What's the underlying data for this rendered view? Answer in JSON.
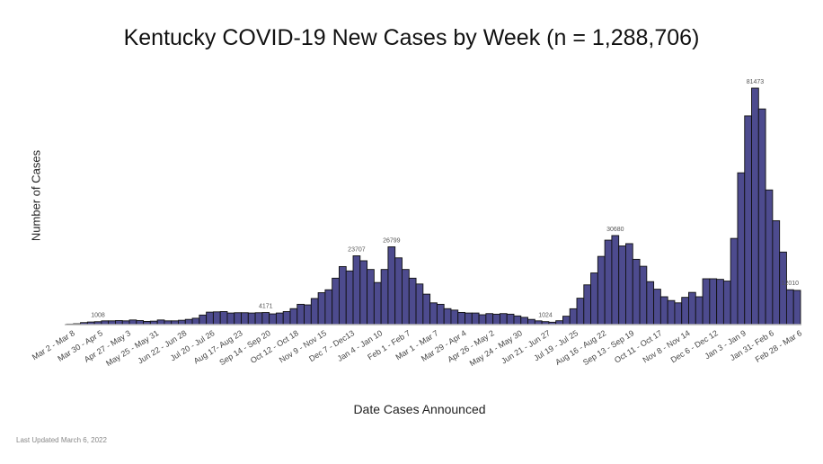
{
  "chart_data": {
    "type": "bar",
    "title": "Kentucky COVID-19 New Cases by Week (n = 1,288,706)",
    "xlabel": "Date Cases Announced",
    "ylabel": "Number of Cases",
    "ylim": [
      0,
      82000
    ],
    "grid": false,
    "bar_color": "#4d4b8e",
    "tick_labels": [
      "Mar 2 - Mar 8",
      "Mar 30 - Apr 5",
      "Apr 27 - May 3",
      "May 25 - May 31",
      "Jun 22 - Jun 28",
      "Jul 20 - Jul 26",
      "Aug 17- Aug 23",
      "Sep 14 - Sep 20",
      "Oct 12 - Oct 18",
      "Nov 9 - Nov 15",
      "Dec 7 - Dec13",
      "Jan 4 - Jan 10",
      "Feb 1 - Feb 7",
      "Mar 1 - Mar 7",
      "Mar 29 - Apr 4",
      "Apr 26 - May 2",
      "May 24 - May 30",
      "Jun 21 - Jun 27",
      "Jul 19 - Jul 25",
      "Aug 16 - Aug 22",
      "Sep 13 - Sep 19",
      "Oct 11 - Oct 17",
      "Nov 8 - Nov 14",
      "Dec 6 - Dec 12",
      "Jan 3 - Jan 9",
      "Jan 31- Feb 6",
      "Feb 28 - Mar 6"
    ],
    "tick_every": 4,
    "values": [
      50,
      300,
      700,
      900,
      1008,
      1300,
      1300,
      1400,
      1300,
      1600,
      1400,
      1100,
      1200,
      1600,
      1300,
      1300,
      1500,
      1800,
      2200,
      3300,
      4300,
      4400,
      4500,
      4000,
      4100,
      4100,
      4000,
      4100,
      4171,
      3700,
      4000,
      4500,
      5500,
      7000,
      6800,
      9000,
      11000,
      12000,
      16000,
      20000,
      18500,
      23707,
      22000,
      19000,
      14500,
      19000,
      26799,
      23000,
      19000,
      16000,
      14000,
      10500,
      7500,
      7000,
      5500,
      5000,
      4200,
      4000,
      4000,
      3400,
      3800,
      3600,
      3800,
      3600,
      3000,
      2500,
      1800,
      1300,
      1024,
      830,
      1340,
      2900,
      5460,
      9100,
      13700,
      17800,
      23500,
      29100,
      30680,
      27100,
      27900,
      22500,
      20100,
      14800,
      12200,
      9600,
      8300,
      7500,
      9400,
      11100,
      9600,
      15800,
      15800,
      15600,
      15000,
      29700,
      52300,
      71900,
      81473,
      74300,
      46400,
      35800,
      25000,
      12010,
      11800
    ],
    "data_labels": [
      {
        "index": 4,
        "text": "1008"
      },
      {
        "index": 28,
        "text": "4171"
      },
      {
        "index": 41,
        "text": "23707"
      },
      {
        "index": 46,
        "text": "26799"
      },
      {
        "index": 68,
        "text": "1024"
      },
      {
        "index": 78,
        "text": "30680"
      },
      {
        "index": 98,
        "text": "81473"
      },
      {
        "index": 103,
        "text": "12010"
      }
    ]
  },
  "footer": "Last Updated March 6, 2022"
}
